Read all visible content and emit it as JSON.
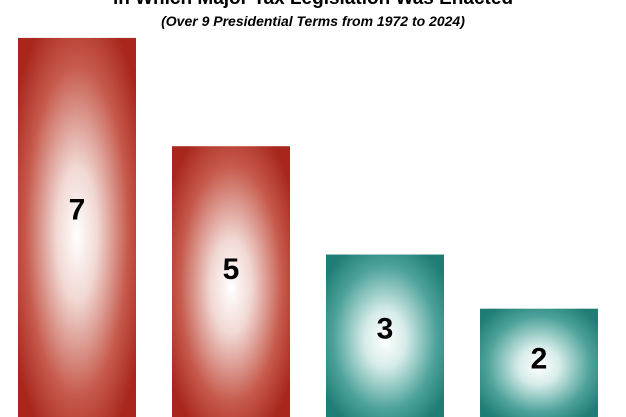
{
  "chart_data": {
    "type": "bar",
    "title": "in Which Major Tax Legislation Was Enacted",
    "subtitle": "(Over 9 Presidential Terms from 1972 to 2024)",
    "categories": [
      "",
      "",
      "",
      ""
    ],
    "values": [
      7,
      5,
      3,
      2
    ],
    "bar_colors": [
      "#a8261c",
      "#a8261c",
      "#1e7d75",
      "#1e7d75"
    ],
    "ylim": [
      0,
      7.7
    ],
    "grid": false,
    "legend": "none"
  }
}
